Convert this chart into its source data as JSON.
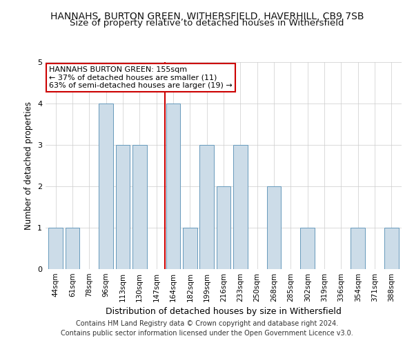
{
  "title": "HANNAHS, BURTON GREEN, WITHERSFIELD, HAVERHILL, CB9 7SB",
  "subtitle": "Size of property relative to detached houses in Withersfield",
  "xlabel": "Distribution of detached houses by size in Withersfield",
  "ylabel": "Number of detached properties",
  "categories": [
    "44sqm",
    "61sqm",
    "78sqm",
    "96sqm",
    "113sqm",
    "130sqm",
    "147sqm",
    "164sqm",
    "182sqm",
    "199sqm",
    "216sqm",
    "233sqm",
    "250sqm",
    "268sqm",
    "285sqm",
    "302sqm",
    "319sqm",
    "336sqm",
    "354sqm",
    "371sqm",
    "388sqm"
  ],
  "values": [
    1,
    1,
    0,
    4,
    3,
    3,
    0,
    4,
    1,
    3,
    2,
    3,
    0,
    2,
    0,
    1,
    0,
    0,
    1,
    0,
    1
  ],
  "bar_color": "#ccdce8",
  "bar_edge_color": "#6699bb",
  "vline_x_index": 7,
  "vline_color": "#cc0000",
  "annotation_text": "HANNAHS BURTON GREEN: 155sqm\n← 37% of detached houses are smaller (11)\n63% of semi-detached houses are larger (19) →",
  "annotation_box_color": "#ffffff",
  "annotation_box_edge": "#cc0000",
  "ylim": [
    0,
    5
  ],
  "yticks": [
    0,
    1,
    2,
    3,
    4,
    5
  ],
  "footer": "Contains HM Land Registry data © Crown copyright and database right 2024.\nContains public sector information licensed under the Open Government Licence v3.0.",
  "title_fontsize": 10,
  "xlabel_fontsize": 9,
  "ylabel_fontsize": 8.5,
  "tick_fontsize": 7.5,
  "annotation_fontsize": 8,
  "footer_fontsize": 7
}
